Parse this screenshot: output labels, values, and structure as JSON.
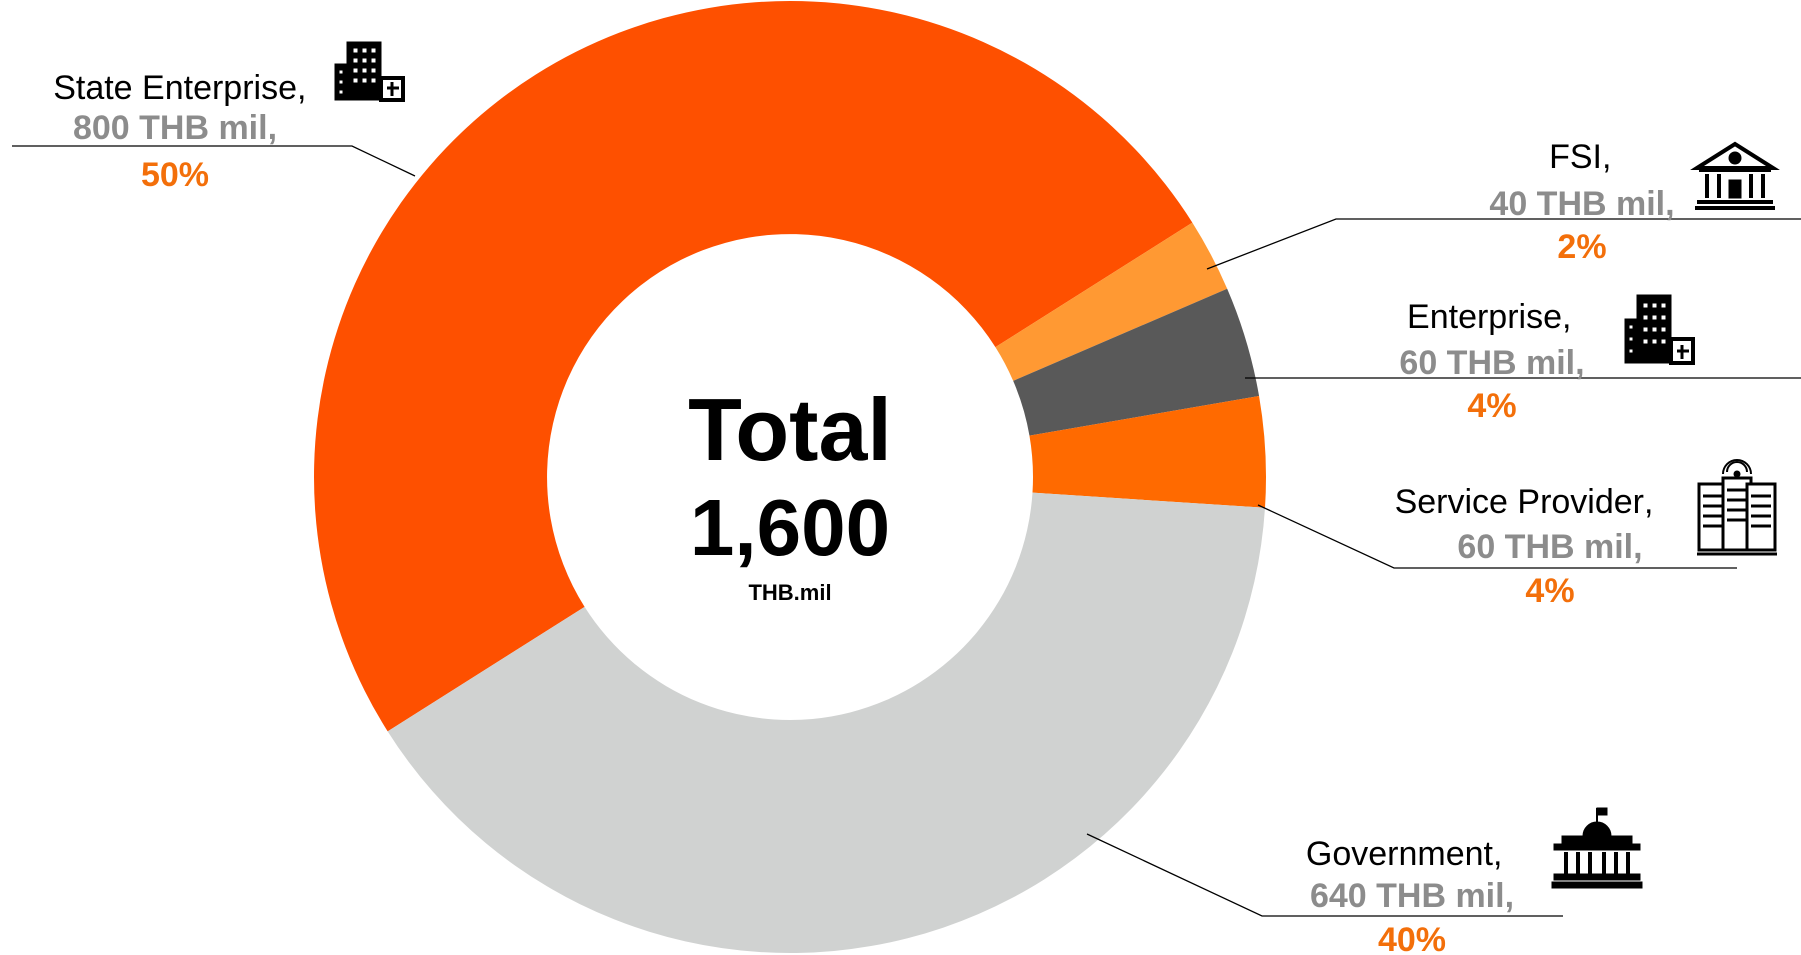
{
  "chart_data": {
    "type": "pie",
    "variant": "donut",
    "unit": "THB mil",
    "center": {
      "title": "Total",
      "value": "1,600",
      "unit": "THB.mil"
    },
    "slices": [
      {
        "name": "State Enterprise",
        "value": 800,
        "value_label": "800 THB mil,",
        "percent_label": "50%",
        "color": "#fe5000",
        "icon": "office-building-icon"
      },
      {
        "name": "FSI",
        "value": 40,
        "value_label": "40 THB mil,",
        "percent_label": "2%",
        "color": "#ff9933",
        "icon": "bank-icon"
      },
      {
        "name": "Enterprise",
        "value": 60,
        "value_label": "60 THB mil,",
        "percent_label": "4%",
        "color": "#595959",
        "icon": "office-building-icon"
      },
      {
        "name": "Service Provider",
        "value": 60,
        "value_label": "60 THB mil,",
        "percent_label": "4%",
        "color": "#ff6a00",
        "icon": "server-rack-icon"
      },
      {
        "name": "Government",
        "value": 640,
        "value_label": "640 THB mil,",
        "percent_label": "40%",
        "color": "#d0d2d1",
        "icon": "capitol-building-icon"
      }
    ]
  }
}
